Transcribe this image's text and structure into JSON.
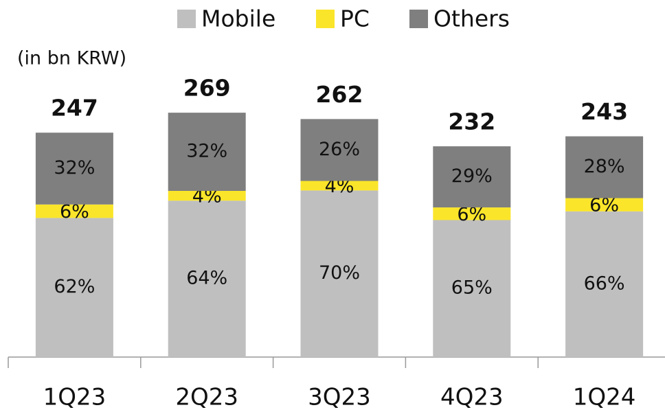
{
  "chart_data": {
    "type": "stacked_bar_percent",
    "unit_note": "(in bn KRW)",
    "categories": [
      "1Q23",
      "2Q23",
      "3Q23",
      "4Q23",
      "1Q24"
    ],
    "totals": [
      247,
      269,
      262,
      232,
      243
    ],
    "series": [
      {
        "name": "Mobile",
        "color": "#bfbfbf",
        "values": [
          62,
          64,
          70,
          65,
          66
        ],
        "value_labels": [
          "62%",
          "64%",
          "70%",
          "65%",
          "66%"
        ]
      },
      {
        "name": "PC",
        "color": "#fae52a",
        "values": [
          6,
          4,
          4,
          6,
          6
        ],
        "value_labels": [
          "6%",
          "4%",
          "4%",
          "6%",
          "6%"
        ]
      },
      {
        "name": "Others",
        "color": "#7f7f7f",
        "values": [
          32,
          32,
          26,
          29,
          28
        ],
        "value_labels": [
          "32%",
          "32%",
          "26%",
          "29%",
          "28%"
        ]
      }
    ]
  }
}
